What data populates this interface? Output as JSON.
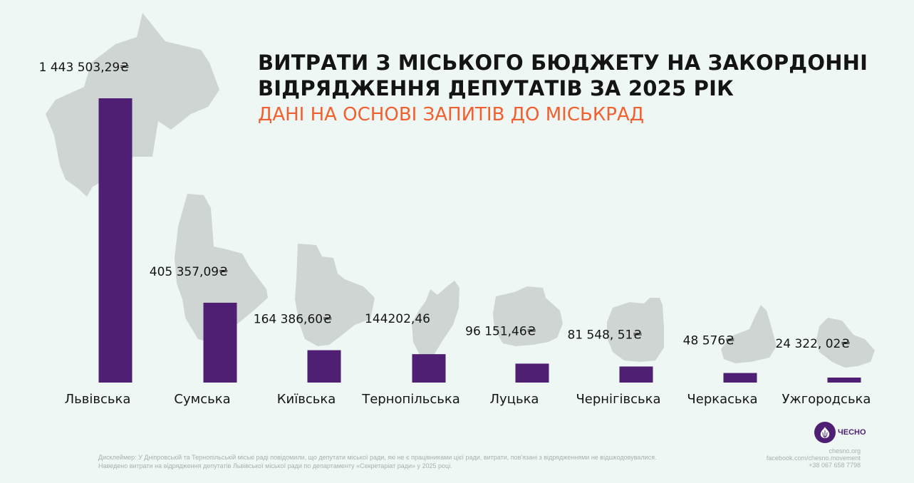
{
  "title_lines": [
    "ВИТРАТИ З МІСЬКОГО БЮДЖЕТУ НА ЗАКОРДОННІ",
    "ВІДРЯДЖЕННЯ ДЕПУТАТІВ ЗА 2025 РІК"
  ],
  "subtitle": "ДАНІ НА ОСНОВІ ЗАПИТІВ ДО МІСЬКРАД",
  "chart_data": {
    "type": "bar",
    "categories": [
      "Львівська",
      "Сумська",
      "Київська",
      "Тернопільська",
      "Луцька",
      "Чернігівська",
      "Черкаська",
      "Ужгородська"
    ],
    "values": [
      1443503.29,
      405357.09,
      164386.6,
      144202.46,
      96151.46,
      81548.51,
      48576,
      24322.02
    ],
    "value_labels": [
      "1 443 503,29₴",
      "405 357,09₴",
      "164 386,60₴",
      "144202,46",
      "96 151,46₴",
      "81 548, 51₴",
      "48 576₴",
      "24 322, 02₴"
    ],
    "ylim": [
      0,
      1443503.29
    ],
    "grid": false,
    "legend": "none"
  },
  "colors": {
    "bar": "#4f1f73",
    "map_shape": "#cfd5d3",
    "background": "#eef7f4",
    "title": "#141414",
    "subtitle": "#f2602f"
  },
  "disclaimer_lines": [
    "Дисклеймер: У Дніпровській та Тернопільській міські раді повідомили, що депутати міської ради, які не є працівниками цієї ради, витрати, пов'язані з відрядженнями не відшкодовувалися.",
    "Наведено витрати на відрядження депутатів Львівської міської ради по департаменту «Секретаріат ради» у 2025 році."
  ],
  "contacts": [
    "chesno.org",
    "facebook.com/chesno.movement",
    "+38 067 658 7798"
  ],
  "logo": {
    "text": "ЧЕСНО",
    "icon": "garlic-icon"
  }
}
